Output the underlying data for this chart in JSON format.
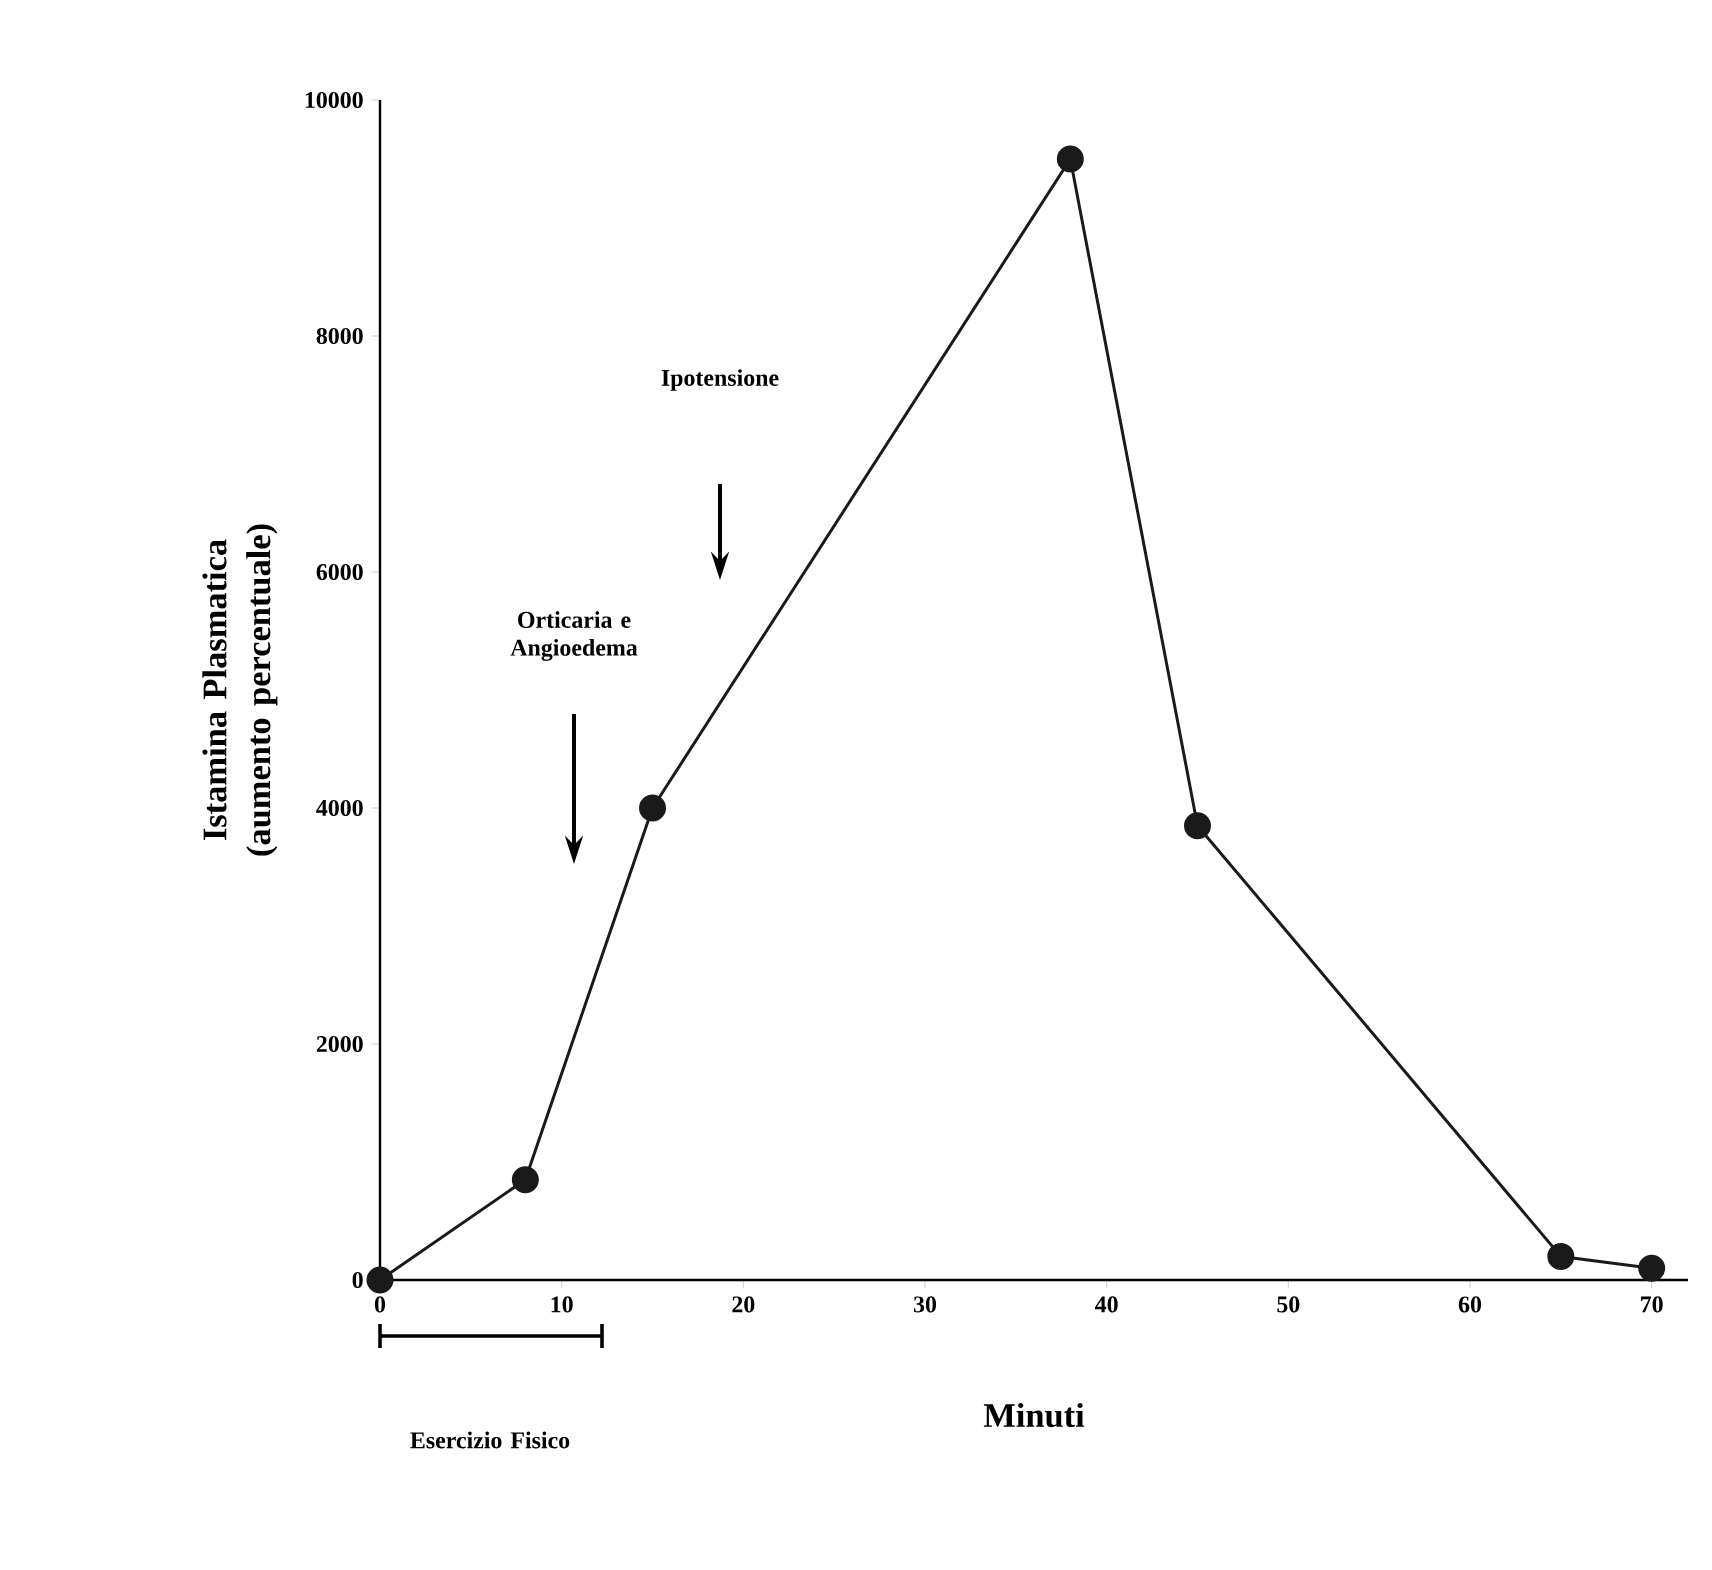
{
  "chart_data": {
    "type": "line",
    "xlabel": "Minuti",
    "ylabel": "Istamina Plasmatica (aumento percentuale)",
    "x": [
      0,
      8,
      15,
      38,
      45,
      65,
      70
    ],
    "values": [
      0,
      850,
      4000,
      9500,
      3850,
      200,
      100
    ],
    "color": "#1a1a1a",
    "marker": "circle",
    "line_style": "solid",
    "grid": false,
    "xlim": [
      0,
      72
    ],
    "ylim": [
      0,
      10000
    ],
    "xticks": [
      0,
      10,
      20,
      30,
      40,
      50,
      60,
      70
    ],
    "yticks": [
      0,
      2000,
      4000,
      6000,
      8000,
      10000
    ],
    "annotations": [
      "Esercizio Fisico",
      "Orticaria e Angioedema",
      "Ipotensione"
    ]
  }
}
